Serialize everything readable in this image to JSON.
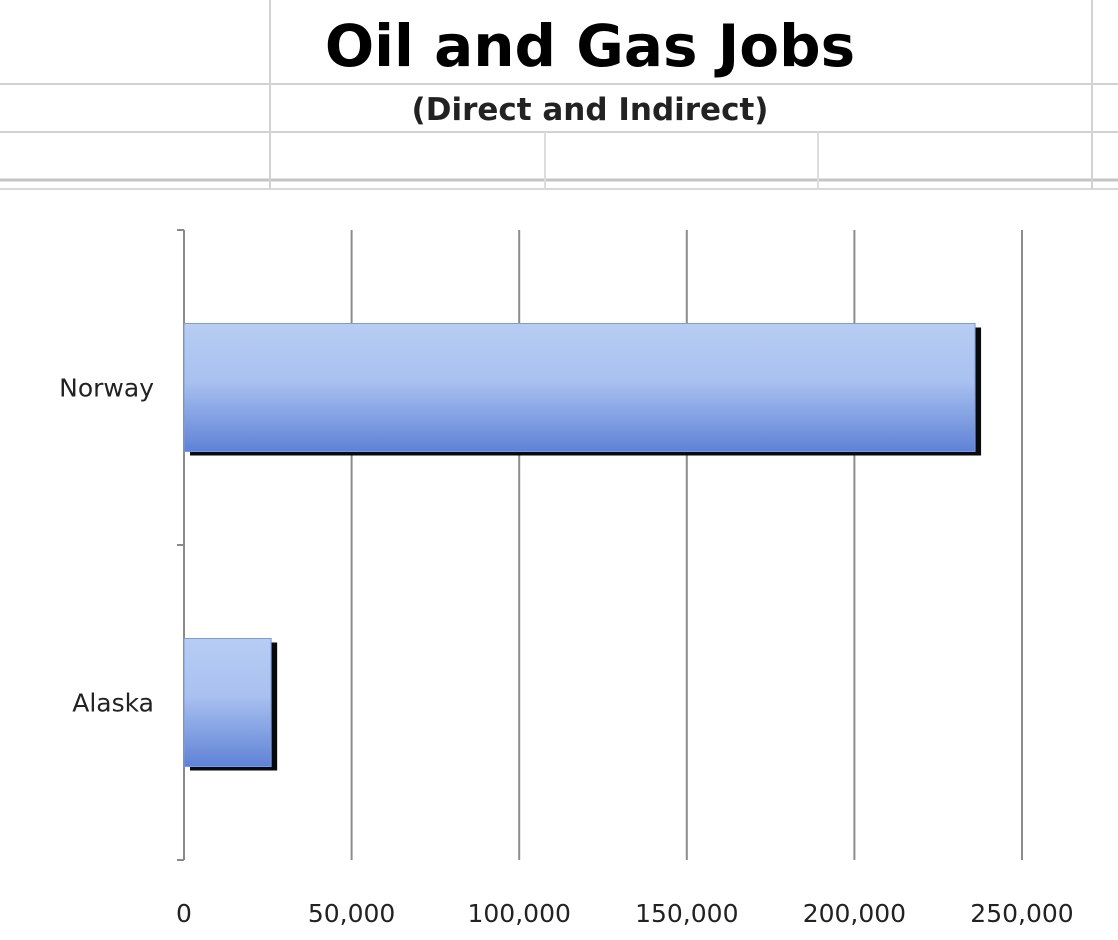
{
  "chart_data": {
    "type": "bar",
    "orientation": "horizontal",
    "title": "Oil and Gas Jobs",
    "subtitle": "(Direct and Indirect)",
    "categories": [
      "Norway",
      "Alaska"
    ],
    "values": [
      236000,
      26000
    ],
    "xlim": [
      0,
      250000
    ],
    "xticks": [
      0,
      50000,
      100000,
      150000,
      200000,
      250000
    ],
    "xtick_labels": [
      "0",
      "50,000",
      "100,000",
      "150,000",
      "200,000",
      "250,000"
    ],
    "grid": "vertical",
    "legend": "none",
    "colors": {
      "bar_light": "#b7cdf3",
      "bar_dark": "#5f82d6",
      "bar_edge": "#0a0a0a",
      "gridline": "#8c8c8c"
    }
  }
}
